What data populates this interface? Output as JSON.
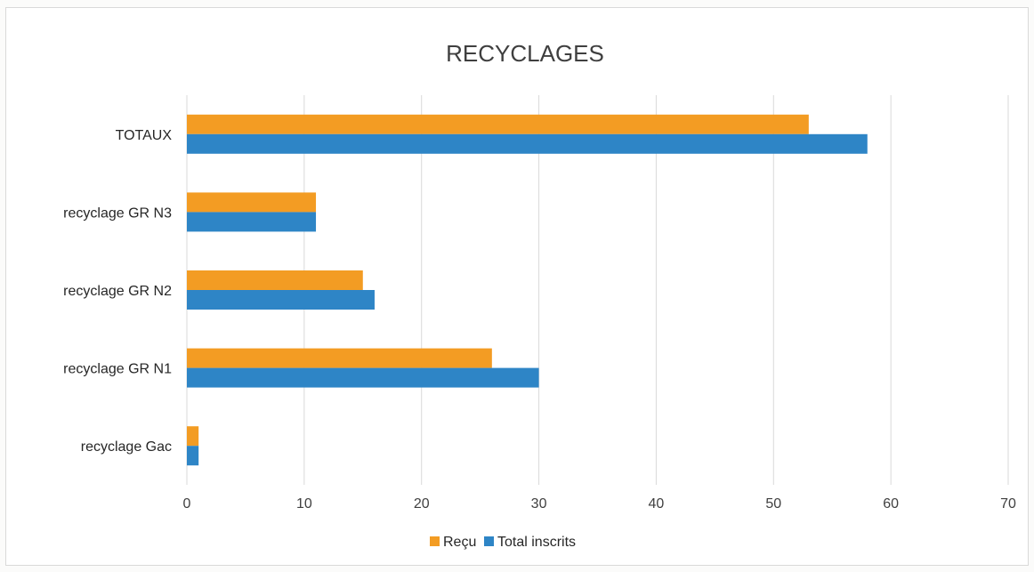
{
  "chart_data": {
    "type": "bar",
    "orientation": "horizontal",
    "title": "RECYCLAGES",
    "categories": [
      "TOTAUX",
      "recyclage GR N3",
      "recyclage GR N2",
      "recyclage GR N1",
      "recyclage Gac"
    ],
    "series": [
      {
        "name": "Reçu",
        "color": "#f39c23",
        "values": [
          53,
          11,
          15,
          26,
          1
        ]
      },
      {
        "name": "Total inscrits",
        "color": "#2e85c6",
        "values": [
          58,
          11,
          16,
          30,
          1
        ]
      }
    ],
    "xlim": [
      0,
      70
    ],
    "x_ticks": [
      0,
      10,
      20,
      30,
      40,
      50,
      60,
      70
    ],
    "grid": true,
    "legend_position": "bottom"
  }
}
